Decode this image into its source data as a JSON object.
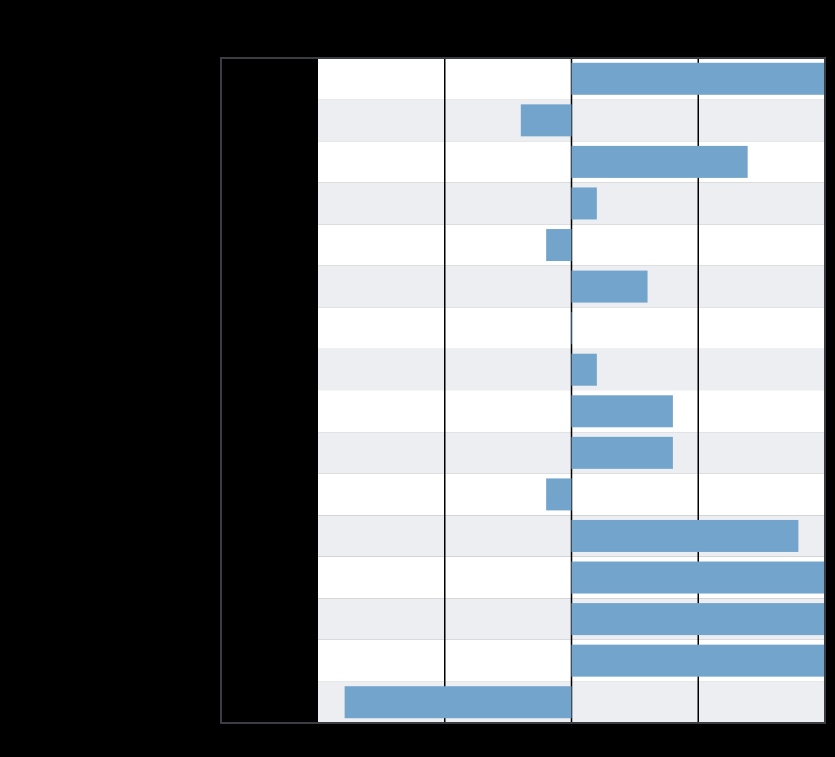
{
  "chart_data": {
    "type": "barh",
    "categories": [
      null,
      null,
      null,
      null,
      null,
      null,
      null,
      null,
      null,
      null,
      null,
      null,
      null,
      null,
      null,
      null
    ],
    "values": [
      2,
      -0.4,
      1.39,
      0.2,
      -0.2,
      0.6,
      0,
      0.2,
      0.8,
      0.8,
      -0.2,
      1.79,
      2,
      2,
      2,
      -1.79
    ],
    "color": "#73a5cc",
    "xlim": [
      -2,
      2
    ],
    "xticks": [
      -1,
      0,
      1
    ],
    "grid": true
  }
}
